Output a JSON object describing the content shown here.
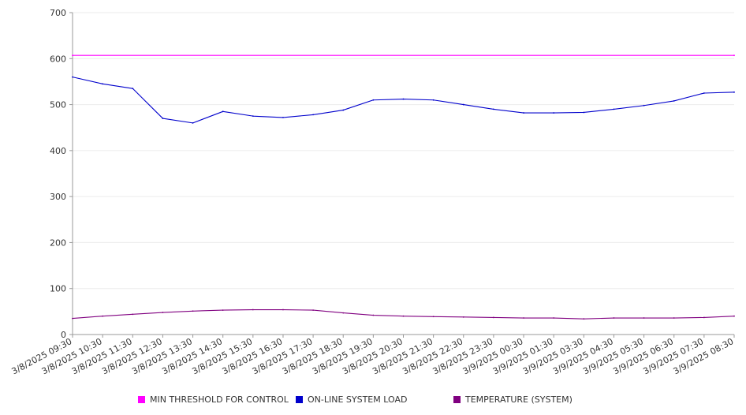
{
  "chart_data": {
    "type": "line",
    "title": "",
    "xlabel": "",
    "ylabel": "",
    "ylim": [
      0,
      700
    ],
    "y_ticks": [
      0,
      100,
      200,
      300,
      400,
      500,
      600,
      700
    ],
    "grid": true,
    "legend_position": "bottom",
    "x_tick_labels": [
      "3/8/2025 09:30",
      "3/8/2025 10:30",
      "3/8/2025 11:30",
      "3/8/2025 12:30",
      "3/8/2025 13:30",
      "3/8/2025 14:30",
      "3/8/2025 15:30",
      "3/8/2025 16:30",
      "3/8/2025 17:30",
      "3/8/2025 18:30",
      "3/8/2025 19:30",
      "3/8/2025 20:30",
      "3/8/2025 21:30",
      "3/8/2025 22:30",
      "3/8/2025 23:30",
      "3/9/2025 00:30",
      "3/9/2025 01:30",
      "3/9/2025 03:30",
      "3/9/2025 04:30",
      "3/9/2025 05:30",
      "3/9/2025 06:30",
      "3/9/2025 07:30",
      "3/9/2025 08:30"
    ],
    "series": [
      {
        "name": "MIN THRESHOLD FOR CONTROL",
        "color": "#ff00ff",
        "x": [
          "3/8/2025 09:30",
          "3/9/2025 08:30"
        ],
        "values": [
          607,
          607
        ]
      },
      {
        "name": "ON-LINE SYSTEM LOAD",
        "color": "#0000cc",
        "x": [
          "3/8/2025 09:30",
          "3/8/2025 10:30",
          "3/8/2025 11:30",
          "3/8/2025 12:30",
          "3/8/2025 13:30",
          "3/8/2025 14:30",
          "3/8/2025 15:30",
          "3/8/2025 16:30",
          "3/8/2025 17:30",
          "3/8/2025 18:30",
          "3/8/2025 19:30",
          "3/8/2025 20:30",
          "3/8/2025 21:30",
          "3/8/2025 22:30",
          "3/8/2025 23:30",
          "3/9/2025 00:30",
          "3/9/2025 01:30",
          "3/9/2025 03:30",
          "3/9/2025 04:30",
          "3/9/2025 05:30",
          "3/9/2025 06:30",
          "3/9/2025 07:30",
          "3/9/2025 08:30"
        ],
        "values": [
          560,
          545,
          535,
          470,
          460,
          485,
          475,
          472,
          478,
          488,
          510,
          512,
          510,
          500,
          490,
          482,
          482,
          483,
          490,
          498,
          508,
          525,
          527
        ]
      },
      {
        "name": "TEMPERATURE (SYSTEM)",
        "color": "#800080",
        "x": [
          "3/8/2025 09:30",
          "3/8/2025 10:30",
          "3/8/2025 11:30",
          "3/8/2025 12:30",
          "3/8/2025 13:30",
          "3/8/2025 14:30",
          "3/8/2025 15:30",
          "3/8/2025 16:30",
          "3/8/2025 17:30",
          "3/8/2025 18:30",
          "3/8/2025 19:30",
          "3/8/2025 20:30",
          "3/8/2025 21:30",
          "3/8/2025 22:30",
          "3/8/2025 23:30",
          "3/9/2025 00:30",
          "3/9/2025 01:30",
          "3/9/2025 03:30",
          "3/9/2025 04:30",
          "3/9/2025 05:30",
          "3/9/2025 06:30",
          "3/9/2025 07:30",
          "3/9/2025 08:30"
        ],
        "values": [
          35,
          40,
          44,
          48,
          51,
          53,
          54,
          54,
          53,
          47,
          42,
          40,
          39,
          38,
          37,
          36,
          36,
          34,
          36,
          36,
          36,
          37,
          40
        ]
      }
    ]
  }
}
